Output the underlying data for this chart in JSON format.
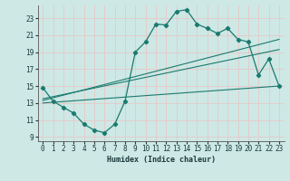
{
  "xlabel": "Humidex (Indice chaleur)",
  "bg_color": "#cde8e5",
  "grid_color": "#b0d8d4",
  "line_color": "#1a7a6e",
  "xlim": [
    -0.5,
    23.5
  ],
  "ylim": [
    8.5,
    24.5
  ],
  "yticks": [
    9,
    11,
    13,
    15,
    17,
    19,
    21,
    23
  ],
  "xticks": [
    0,
    1,
    2,
    3,
    4,
    5,
    6,
    7,
    8,
    9,
    10,
    11,
    12,
    13,
    14,
    15,
    16,
    17,
    18,
    19,
    20,
    21,
    22,
    23
  ],
  "line1_x": [
    0,
    1,
    2,
    3,
    4,
    5,
    6,
    7,
    8,
    9,
    10,
    11,
    12,
    13,
    14,
    15,
    16,
    17,
    18,
    19,
    20,
    21,
    22,
    23
  ],
  "line1_y": [
    14.8,
    13.2,
    12.5,
    11.8,
    10.5,
    9.8,
    9.5,
    10.5,
    13.2,
    19.0,
    20.2,
    22.3,
    22.2,
    23.8,
    24.0,
    22.3,
    21.8,
    21.2,
    21.8,
    20.5,
    20.2,
    16.3,
    18.2,
    15.0
  ],
  "line2_x": [
    0,
    23
  ],
  "line2_y": [
    13.3,
    20.5
  ],
  "line3_x": [
    0,
    23
  ],
  "line3_y": [
    13.5,
    19.3
  ],
  "line4_x": [
    0,
    23
  ],
  "line4_y": [
    13.0,
    15.0
  ]
}
